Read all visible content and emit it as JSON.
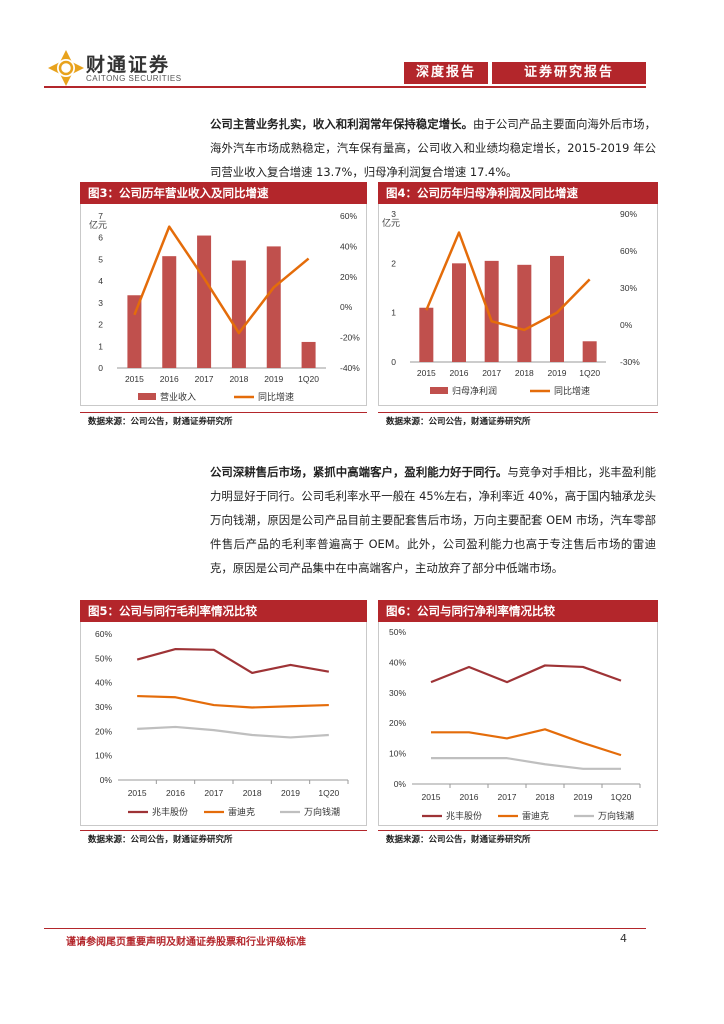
{
  "header": {
    "brand_cn": "财通证券",
    "brand_en": "CAITONG SECURITIES",
    "tag1": "深度报告",
    "tag2": "证券研究报告"
  },
  "paragraph1": {
    "lead": "公司主营业务扎实，收入和利润常年保持稳定增长。",
    "body": "由于公司产品主要面向海外后市场，海外汽车市场成熟稳定，汽车保有量高，公司收入和业绩均稳定增长，2015-2019 年公司营业收入复合增速 13.7%，归母净利润复合增速 17.4%。"
  },
  "paragraph2": {
    "lead": "公司深耕售后市场，紧抓中高端客户，盈利能力好于同行。",
    "body": "与竞争对手相比，兆丰盈利能力明显好于同行。公司毛利率水平一般在 45%左右，净利率近 40%，高于国内轴承龙头万向钱潮，原因是公司产品目前主要配套售后市场，万向主要配套 OEM 市场，汽车零部件售后产品的毛利率普遍高于 OEM。此外，公司盈利能力也高于专注售后市场的雷迪克，原因是公司产品集中在中高端客户，主动放弃了部分中低端市场。"
  },
  "figures": {
    "fig3_title": "图3：公司历年营业收入及同比增速",
    "fig4_title": "图4：公司历年归母净利润及同比增速",
    "fig5_title": "图5：公司与同行毛利率情况比较",
    "fig6_title": "图6：公司与同行净利率情况比较",
    "source": "数据来源：公司公告，财通证券研究所"
  },
  "footer": {
    "disclaimer": "谨请参阅尾页重要声明及财通证券股票和行业评级标准",
    "page": "4"
  },
  "chart_data": [
    {
      "type": "bar",
      "id": "fig3",
      "categories": [
        "2015",
        "2016",
        "2017",
        "2018",
        "2019",
        "1Q20"
      ],
      "series": [
        {
          "name": "营业收入",
          "type": "bar",
          "axis": "left",
          "values": [
            3.35,
            5.15,
            6.1,
            4.95,
            5.6,
            1.2
          ]
        },
        {
          "name": "同比增速",
          "type": "line",
          "axis": "right",
          "values": [
            -0.05,
            0.53,
            0.19,
            -0.17,
            0.13,
            0.32
          ]
        }
      ],
      "unit_label": "亿元",
      "ylim_left": [
        0,
        7
      ],
      "yticks_left": [
        "0",
        "1",
        "2",
        "3",
        "4",
        "5",
        "6",
        "7"
      ],
      "ylim_right": [
        -0.4,
        0.6
      ],
      "yticks_right": [
        "-40%",
        "-20%",
        "0%",
        "20%",
        "40%",
        "60%"
      ],
      "colors": {
        "bar": "#c0504d",
        "line": "#e46c0a"
      }
    },
    {
      "type": "bar",
      "id": "fig4",
      "categories": [
        "2015",
        "2016",
        "2017",
        "2018",
        "2019",
        "1Q20"
      ],
      "series": [
        {
          "name": "归母净利润",
          "type": "bar",
          "axis": "left",
          "values": [
            1.1,
            2.0,
            2.05,
            1.97,
            2.15,
            0.42
          ]
        },
        {
          "name": "同比增速",
          "type": "line",
          "axis": "right",
          "values": [
            0.12,
            0.75,
            0.03,
            -0.04,
            0.1,
            0.37
          ]
        }
      ],
      "unit_label": "亿元",
      "ylim_left": [
        0,
        3
      ],
      "yticks_left": [
        "0",
        "1",
        "2",
        "3"
      ],
      "ylim_right": [
        -0.3,
        0.9
      ],
      "yticks_right": [
        "-30%",
        "0%",
        "30%",
        "60%",
        "90%"
      ],
      "colors": {
        "bar": "#c0504d",
        "line": "#e46c0a"
      }
    },
    {
      "type": "line",
      "id": "fig5",
      "categories": [
        "2015",
        "2016",
        "2017",
        "2018",
        "2019",
        "1Q20"
      ],
      "series": [
        {
          "name": "兆丰股份",
          "values": [
            0.495,
            0.538,
            0.535,
            0.44,
            0.473,
            0.445
          ],
          "color": "#9e3336"
        },
        {
          "name": "雷迪克",
          "values": [
            0.345,
            0.34,
            0.308,
            0.298,
            0.303,
            0.308
          ],
          "color": "#e46c0a"
        },
        {
          "name": "万向钱潮",
          "values": [
            0.21,
            0.218,
            0.205,
            0.185,
            0.175,
            0.185
          ],
          "color": "#bfbfbf"
        }
      ],
      "ylim": [
        0,
        0.6
      ],
      "yticks": [
        "0%",
        "10%",
        "20%",
        "30%",
        "40%",
        "50%",
        "60%"
      ]
    },
    {
      "type": "line",
      "id": "fig6",
      "categories": [
        "2015",
        "2016",
        "2017",
        "2018",
        "2019",
        "1Q20"
      ],
      "series": [
        {
          "name": "兆丰股份",
          "values": [
            0.335,
            0.385,
            0.335,
            0.39,
            0.385,
            0.34
          ],
          "color": "#9e3336"
        },
        {
          "name": "雷迪克",
          "values": [
            0.17,
            0.17,
            0.15,
            0.18,
            0.135,
            0.095
          ],
          "color": "#e46c0a"
        },
        {
          "name": "万向钱潮",
          "values": [
            0.085,
            0.085,
            0.085,
            0.065,
            0.05,
            0.05
          ],
          "color": "#bfbfbf"
        }
      ],
      "ylim": [
        0,
        0.5
      ],
      "yticks": [
        "0%",
        "10%",
        "20%",
        "30%",
        "40%",
        "50%"
      ]
    }
  ]
}
